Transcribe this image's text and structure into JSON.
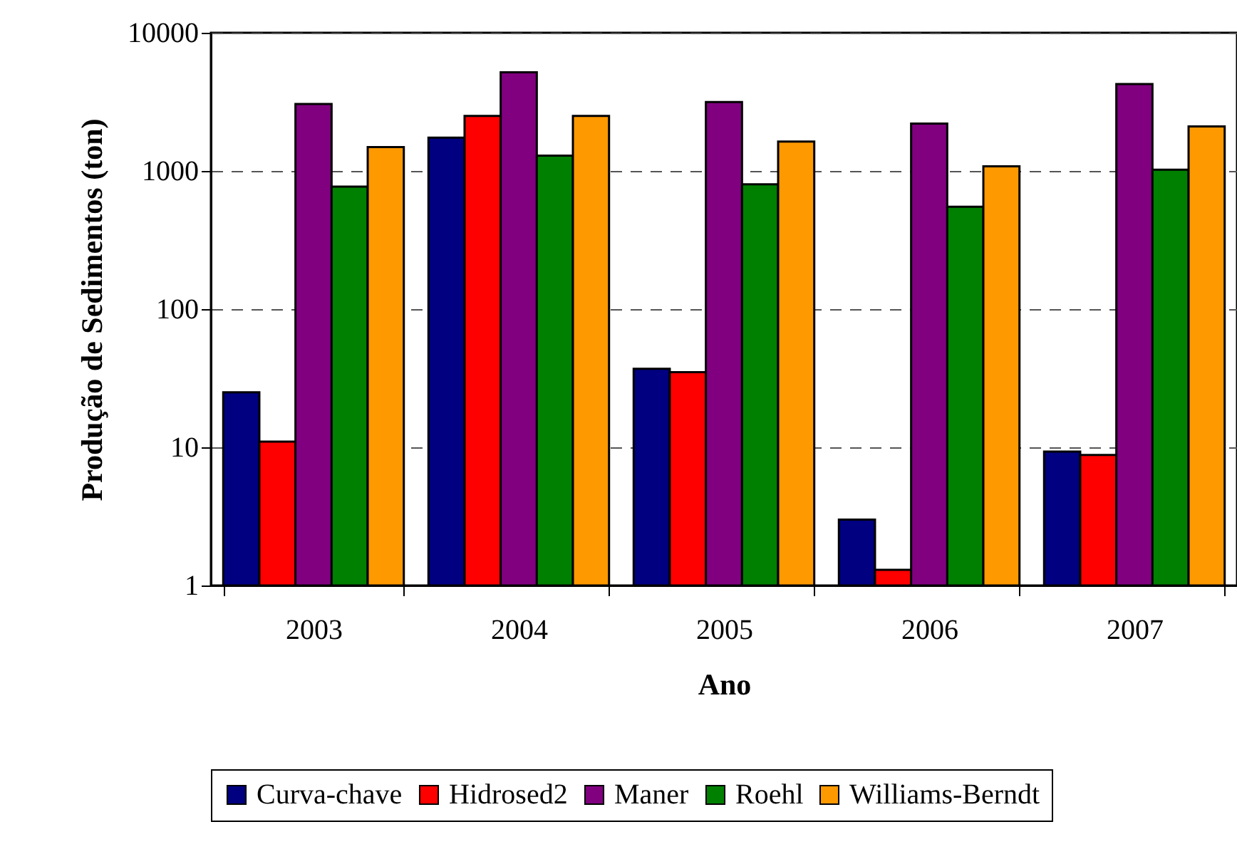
{
  "chart_data": {
    "type": "bar",
    "xlabel": "Ano",
    "ylabel": "Produção de Sedimentos (ton)",
    "categories": [
      "2003",
      "2004",
      "2005",
      "2006",
      "2007"
    ],
    "series": [
      {
        "name": "Curva-chave",
        "color": "#000080",
        "values": [
          25,
          1740,
          37,
          3.0,
          9.3
        ]
      },
      {
        "name": "Hidrosed2",
        "color": "#ff0000",
        "values": [
          11,
          2500,
          35,
          1.3,
          8.8
        ]
      },
      {
        "name": "Maner",
        "color": "#800080",
        "values": [
          3050,
          5170,
          3150,
          2200,
          4250
        ]
      },
      {
        "name": "Roehl",
        "color": "#008000",
        "values": [
          770,
          1290,
          800,
          550,
          1020
        ]
      },
      {
        "name": "Williams-Berndt",
        "color": "#ff9900",
        "values": [
          1490,
          2500,
          1630,
          1080,
          2100
        ]
      }
    ],
    "log": true,
    "ylim": [
      1,
      10000
    ],
    "yticks": [
      1,
      10,
      100,
      1000,
      10000
    ],
    "grid": "y",
    "legend": "bottom"
  }
}
